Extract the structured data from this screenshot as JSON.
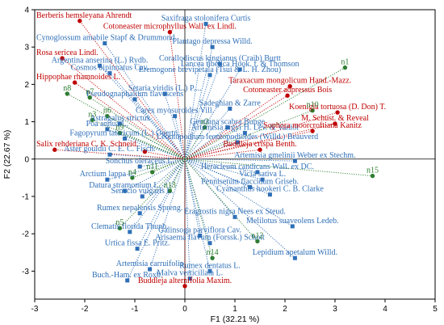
{
  "chart_data": {
    "type": "scatter",
    "title": "",
    "xlabel": "F1 (32.21 %)",
    "ylabel": "F2 (22.67 %)",
    "xlim": [
      -3,
      5
    ],
    "ylim": [
      -3.75,
      4
    ],
    "xticks": [
      -3,
      -2,
      -1,
      0,
      1,
      2,
      3,
      4,
      5
    ],
    "yticks": [
      -3,
      -2,
      -1,
      0,
      1,
      2,
      3,
      4
    ],
    "grid": false,
    "legend": "none",
    "colors": {
      "blue": "#2f6fb7",
      "red": "#c00000",
      "green": "#2e7d32"
    },
    "series": [
      {
        "marker": "blue-square",
        "points": [
          {
            "x": 0.42,
            "y": 3.62,
            "label": "Saxifraga stolonifera Curtis"
          },
          {
            "x": -1.6,
            "y": 3.1,
            "label": "Cynoglossum amabile Stapf & Drummond"
          },
          {
            "x": 0.55,
            "y": 3.0,
            "label": "Plantago depressa Willd."
          },
          {
            "x": -1.7,
            "y": 2.5,
            "label": "Argentina anserina (L.) Rydb."
          },
          {
            "x": -1.5,
            "y": 2.3,
            "label": "Cosmos bipinnatus Cav."
          },
          {
            "x": 0.7,
            "y": 2.55,
            "label": "Corallodiscus kingianus (Craib) Burtt"
          },
          {
            "x": 1.1,
            "y": 2.4,
            "label": "Lancea tibetica Hook. f. & Thomson"
          },
          {
            "x": 0.5,
            "y": 2.25,
            "label": "Eremogone brevipetala (Tsui & L. H. Zhou)"
          },
          {
            "x": -0.4,
            "y": 1.75,
            "label": "Setaria viridis (L.) P...."
          },
          {
            "x": -1.0,
            "y": 1.6,
            "label": "Pseudognaphalium flavescens"
          },
          {
            "x": 0.9,
            "y": 1.35,
            "label": "Sadeghian & Zarre"
          },
          {
            "x": -0.2,
            "y": 1.15,
            "label": "Carex myosuroides Vill."
          },
          {
            "x": -1.3,
            "y": 0.95,
            "label": "Astragalus strictus"
          },
          {
            "x": -1.55,
            "y": 0.8,
            "label": "Poa annua L."
          },
          {
            "x": 0.85,
            "y": 0.85,
            "label": "Gentiana scabra Bunge"
          },
          {
            "x": 1.2,
            "y": 0.7,
            "label": "Artemisia argyi H. Lév. & Vaniot"
          },
          {
            "x": -1.2,
            "y": 0.55,
            "label": "Fagopyrum tataricum (L.) Gaertn."
          },
          {
            "x": 1.05,
            "y": 0.45,
            "label": "Leontopodium leontopodioides (Willd.) Beauverd"
          },
          {
            "x": -1.5,
            "y": 0.12,
            "label": "Aster gouldii C. E. C. Fisch."
          },
          {
            "x": 2.2,
            "y": -0.05,
            "label": "Artemisia gmelinii Weber ex Stechm."
          },
          {
            "x": -0.9,
            "y": -0.2,
            "label": "Sonchus oleraceus L."
          },
          {
            "x": 1.45,
            "y": -0.35,
            "label": "Heracleum candicans Wall. ex DC."
          },
          {
            "x": -1.55,
            "y": -0.55,
            "label": "Arctium lappa L."
          },
          {
            "x": 1.55,
            "y": -0.55,
            "label": "Vicia sativa L."
          },
          {
            "x": 1.3,
            "y": -0.75,
            "label": "Pennisetum flaccidum Griseb."
          },
          {
            "x": -1.2,
            "y": -0.85,
            "label": "Datura stramonium L."
          },
          {
            "x": 1.7,
            "y": -0.95,
            "label": "Cyananthus hookeri C. B. Clarke"
          },
          {
            "x": -0.85,
            "y": -1.0,
            "label": "Senecio vulgaris L."
          },
          {
            "x": -0.9,
            "y": -1.45,
            "label": "Rumex nepalensis Spreng."
          },
          {
            "x": 1.0,
            "y": -1.55,
            "label": "Eragrostis nigra Nees ex Steud."
          },
          {
            "x": 2.15,
            "y": -1.8,
            "label": "Melilotus suaveolens Ledeb."
          },
          {
            "x": -1.1,
            "y": -1.95,
            "label": "Clematis florida Thunb."
          },
          {
            "x": 0.3,
            "y": -2.05,
            "label": "Galinsoga parviflora Cav."
          },
          {
            "x": 0.5,
            "y": -2.25,
            "label": "Arisaema flavum (Forssk.) Schott"
          },
          {
            "x": -0.95,
            "y": -2.4,
            "label": "Urtica fissa E. Pritz."
          },
          {
            "x": 2.2,
            "y": -2.65,
            "label": "Lepidium apetalum Willd."
          },
          {
            "x": -0.7,
            "y": -2.95,
            "label": "Artemisia carruifolia"
          },
          {
            "x": 0.5,
            "y": -3.0,
            "label": "Rumex dentatus L."
          },
          {
            "x": -1.15,
            "y": -3.25,
            "label": "Buch.-Ham. ex Roxb."
          },
          {
            "x": 0.1,
            "y": -3.2,
            "label": "Malva verticillata L."
          }
        ]
      },
      {
        "marker": "red-circle",
        "points": [
          {
            "x": -2.1,
            "y": 3.7,
            "label": "Berberis hemsleyana Ahrendt"
          },
          {
            "x": -0.3,
            "y": 3.4,
            "label": "Cotoneaster microphyllus Wall. ex Lindl."
          },
          {
            "x": -2.45,
            "y": 2.7,
            "label": "Rosa sericea Lindl."
          },
          {
            "x": -2.2,
            "y": 2.05,
            "label": "Hippophae rhamnoides L."
          },
          {
            "x": 2.1,
            "y": 1.95,
            "label": "Taraxacum mongolicum Hand.-Mazz."
          },
          {
            "x": 2.05,
            "y": 1.7,
            "label": "Cotoneaster adpressus Bois"
          },
          {
            "x": 3.05,
            "y": 1.25,
            "label": "Koenigia tortuosa (D. Don) T."
          },
          {
            "x": 3.0,
            "y": 0.95,
            "label": "M. Schust. & Reveal"
          },
          {
            "x": 2.55,
            "y": 0.75,
            "label": "Sophora moorcroftiana Kanitz"
          },
          {
            "x": 1.5,
            "y": 0.25,
            "label": "Buddleja crispa Benth."
          },
          {
            "x": -2.6,
            "y": 0.25,
            "label": "Salix rehderiana C. K. Schneid."
          },
          {
            "x": 0.0,
            "y": -3.4,
            "label": "Buddleja alternifolia Maxim."
          },
          {
            "x": -0.8,
            "y": 0.2,
            "label": ""
          }
        ]
      },
      {
        "marker": "green-circle",
        "points": [
          {
            "x": 3.2,
            "y": 2.45,
            "label": "n1"
          },
          {
            "x": 0.4,
            "y": 0.85,
            "label": "n2"
          },
          {
            "x": -1.85,
            "y": 1.05,
            "label": "n3"
          },
          {
            "x": -1.05,
            "y": -0.5,
            "label": "n4"
          },
          {
            "x": -1.3,
            "y": -1.85,
            "label": "n5"
          },
          {
            "x": -1.55,
            "y": 1.15,
            "label": "n6"
          },
          {
            "x": -1.9,
            "y": 1.65,
            "label": "n7"
          },
          {
            "x": -2.35,
            "y": 1.75,
            "label": "n8"
          },
          {
            "x": -1.3,
            "y": 0.7,
            "label": "n9"
          },
          {
            "x": 2.55,
            "y": 1.3,
            "label": "n10"
          },
          {
            "x": -0.65,
            "y": -0.35,
            "label": "n11"
          },
          {
            "x": 1.45,
            "y": -2.2,
            "label": "n12"
          },
          {
            "x": -0.3,
            "y": -0.85,
            "label": "n13"
          },
          {
            "x": 0.55,
            "y": -2.65,
            "label": "n14"
          },
          {
            "x": 3.75,
            "y": -0.45,
            "label": "n15"
          }
        ]
      }
    ]
  }
}
